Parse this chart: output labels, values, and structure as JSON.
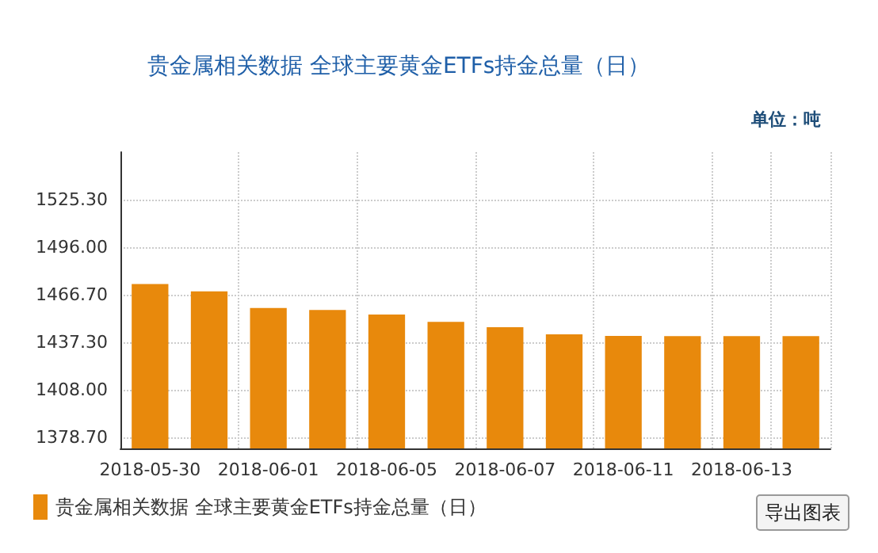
{
  "chart_data": {
    "type": "bar",
    "title": "贵金属相关数据 全球主要黄金ETFs持金总量（日）",
    "ylabel": "单位：吨",
    "categories": [
      "2018-05-30",
      null,
      "2018-06-01",
      null,
      "2018-06-05",
      null,
      "2018-06-07",
      null,
      "2018-06-11",
      null,
      "2018-06-13",
      null
    ],
    "series": [
      {
        "name": "贵金属相关数据 全球主要黄金ETFs持金总量（日）",
        "color": "#e8890c",
        "values": [
          1473.3,
          1468.8,
          1458.5,
          1457.3,
          1454.4,
          1449.9,
          1446.6,
          1442.2,
          1441.3,
          1441.1,
          1441.1,
          1441.1
        ]
      }
    ],
    "ylim": [
      1371.9,
      1554.6
    ],
    "yticks": [
      {
        "value": 1378.7,
        "label": "1378.70"
      },
      {
        "value": 1408.0,
        "label": "1408.00"
      },
      {
        "value": 1437.3,
        "label": "1437.30"
      },
      {
        "value": 1466.7,
        "label": "1466.70"
      },
      {
        "value": 1496.0,
        "label": "1496.00"
      },
      {
        "value": 1525.3,
        "label": "1525.30"
      }
    ],
    "grid": true,
    "legend": "bottom left",
    "annotations": [
      "导出图表"
    ]
  }
}
